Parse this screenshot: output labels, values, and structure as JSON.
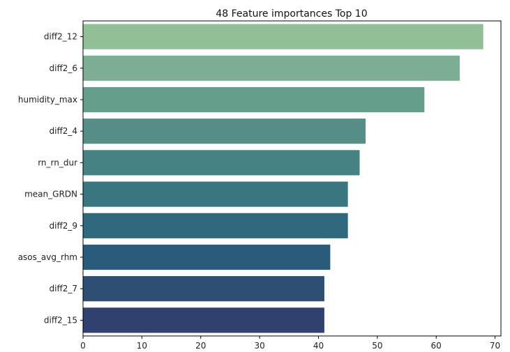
{
  "chart_data": {
    "type": "bar",
    "orientation": "horizontal",
    "title": "48 Feature importances Top 10",
    "xlabel": "",
    "ylabel": "",
    "categories": [
      "diff2_12",
      "diff2_6",
      "humidity_max",
      "diff2_4",
      "rn_rn_dur",
      "mean_GRDN",
      "diff2_9",
      "asos_avg_rhm",
      "diff2_7",
      "diff2_15"
    ],
    "values": [
      68,
      64,
      58,
      48,
      47,
      45,
      45,
      42,
      41,
      41
    ],
    "colors": [
      "#93bf97",
      "#7dad93",
      "#669e8c",
      "#568d87",
      "#468282",
      "#3a7680",
      "#2f687c",
      "#2b5b7a",
      "#2e4e74",
      "#30406f"
    ],
    "xlim": [
      0,
      71
    ],
    "xticks": [
      0,
      10,
      20,
      30,
      40,
      50,
      60,
      70
    ],
    "grid": false,
    "legend": "none"
  }
}
